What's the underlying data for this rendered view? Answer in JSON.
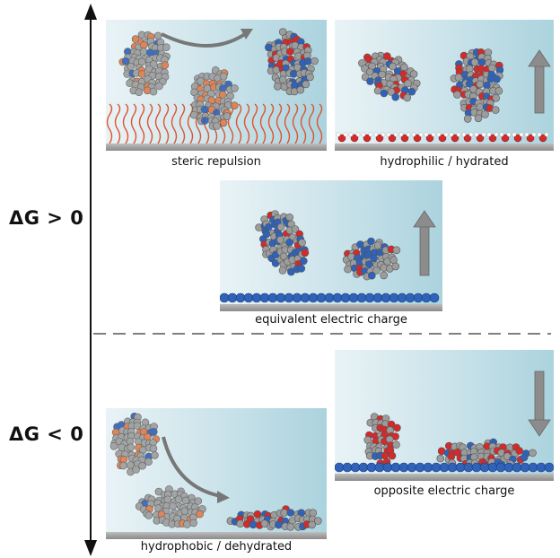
{
  "axis": {
    "upper_label": "ΔG > 0",
    "lower_label": "ΔG < 0"
  },
  "panels": {
    "steric": {
      "caption": "steric repulsion"
    },
    "hydrophilic": {
      "caption": "hydrophilic / hydrated"
    },
    "equivalent": {
      "caption": "equivalent electric charge"
    },
    "opposite": {
      "caption": "opposite electric charge"
    },
    "hydrophobic": {
      "caption": "hydrophobic / dehydrated"
    }
  },
  "colors": {
    "atom_gray": "#9c9c9c",
    "atom_blue": "#2f62b8",
    "atom_red": "#d42a2a",
    "atom_orange": "#e07a4a",
    "brush": "#e0522e",
    "arrow_gray": "#8c8c8c"
  }
}
